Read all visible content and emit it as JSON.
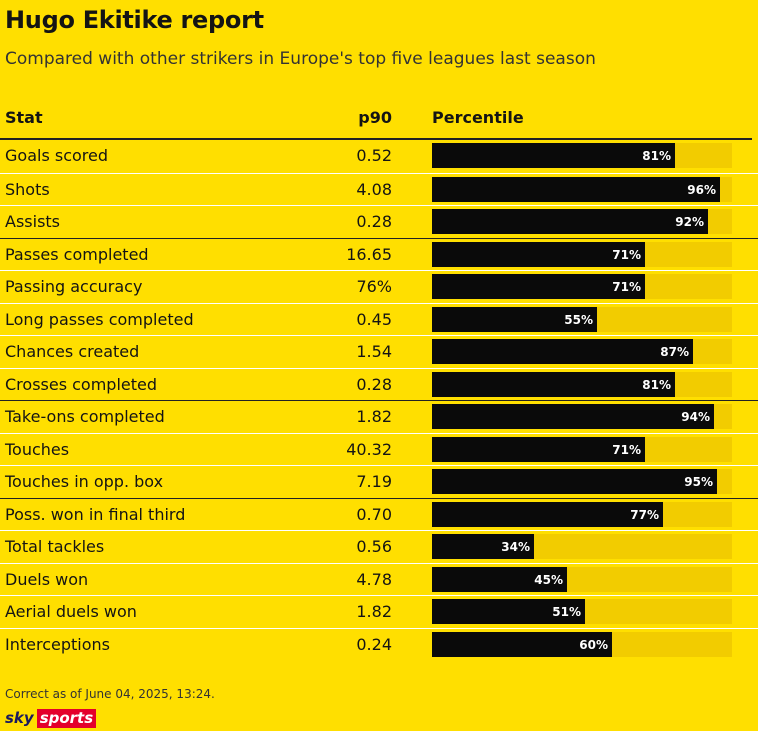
{
  "title": "Hugo Ekitike report",
  "subtitle": "Compared with other strikers in Europe's top five leagues last season",
  "headers": {
    "stat": "Stat",
    "p90": "p90",
    "percentile": "Percentile"
  },
  "footer": {
    "note": "Correct as of June 04, 2025, 13:24.",
    "logo_sky": "sky",
    "logo_sports": "sports"
  },
  "colors": {
    "background": "#ffdf00",
    "bar": "#0a0a0a",
    "track": "#f2cc00",
    "logo_red": "#e4002b"
  },
  "chart_data": {
    "type": "bar",
    "orientation": "horizontal",
    "xlim": [
      0,
      100
    ],
    "rows": [
      {
        "stat": "Goals scored",
        "p90": "0.52",
        "percentile": 81,
        "label": "81%",
        "group_start": true
      },
      {
        "stat": "Shots",
        "p90": "4.08",
        "percentile": 96,
        "label": "96%",
        "group_start": false
      },
      {
        "stat": "Assists",
        "p90": "0.28",
        "percentile": 92,
        "label": "92%",
        "group_start": false
      },
      {
        "stat": "Passes completed",
        "p90": "16.65",
        "percentile": 71,
        "label": "71%",
        "group_start": true
      },
      {
        "stat": "Passing accuracy",
        "p90": "76%",
        "percentile": 71,
        "label": "71%",
        "group_start": false
      },
      {
        "stat": "Long passes completed",
        "p90": "0.45",
        "percentile": 55,
        "label": "55%",
        "group_start": false
      },
      {
        "stat": "Chances created",
        "p90": "1.54",
        "percentile": 87,
        "label": "87%",
        "group_start": false
      },
      {
        "stat": "Crosses completed",
        "p90": "0.28",
        "percentile": 81,
        "label": "81%",
        "group_start": false
      },
      {
        "stat": "Take-ons completed",
        "p90": "1.82",
        "percentile": 94,
        "label": "94%",
        "group_start": true
      },
      {
        "stat": "Touches",
        "p90": "40.32",
        "percentile": 71,
        "label": "71%",
        "group_start": false
      },
      {
        "stat": "Touches in opp. box",
        "p90": "7.19",
        "percentile": 95,
        "label": "95%",
        "group_start": false
      },
      {
        "stat": "Poss. won in final third",
        "p90": "0.70",
        "percentile": 77,
        "label": "77%",
        "group_start": true
      },
      {
        "stat": "Total tackles",
        "p90": "0.56",
        "percentile": 34,
        "label": "34%",
        "group_start": false
      },
      {
        "stat": "Duels won",
        "p90": "4.78",
        "percentile": 45,
        "label": "45%",
        "group_start": false
      },
      {
        "stat": "Aerial duels won",
        "p90": "1.82",
        "percentile": 51,
        "label": "51%",
        "group_start": false
      },
      {
        "stat": "Interceptions",
        "p90": "0.24",
        "percentile": 60,
        "label": "60%",
        "group_start": false
      }
    ]
  }
}
